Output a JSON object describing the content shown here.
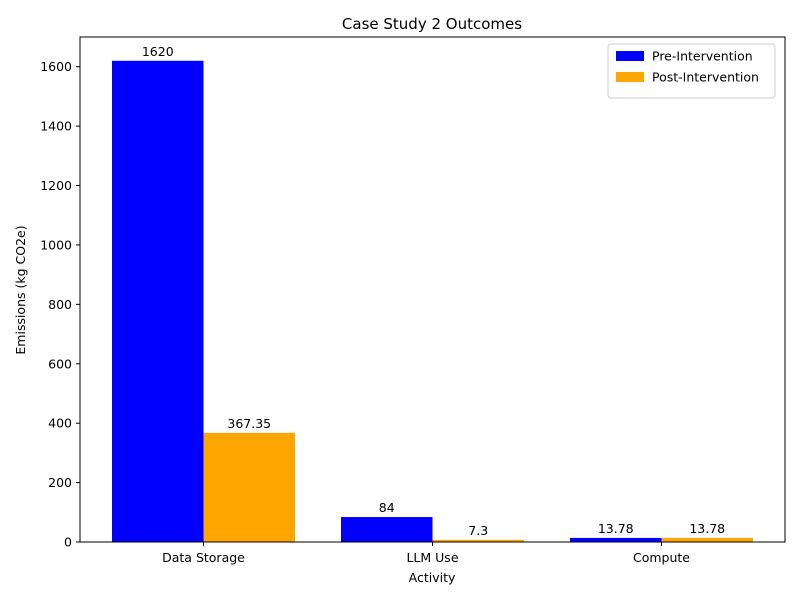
{
  "chart_data": {
    "type": "bar",
    "title": "Case Study 2 Outcomes",
    "xlabel": "Activity",
    "ylabel": "Emissions (kg CO2e)",
    "categories": [
      "Data Storage",
      "LLM Use",
      "Compute"
    ],
    "series": [
      {
        "name": "Pre-Intervention",
        "values": [
          1620,
          84,
          13.78
        ],
        "labels": [
          "1620",
          "84",
          "13.78"
        ],
        "color": "#0000ff"
      },
      {
        "name": "Post-Intervention",
        "values": [
          367.35,
          7.3,
          13.78
        ],
        "labels": [
          "367.35",
          "7.3",
          "13.78"
        ],
        "color": "#ffa500"
      }
    ],
    "ylim": [
      0,
      1700
    ],
    "yticks": [
      0,
      200,
      400,
      600,
      800,
      1000,
      1200,
      1400,
      1600
    ],
    "grid": false,
    "legend": "top-right"
  }
}
